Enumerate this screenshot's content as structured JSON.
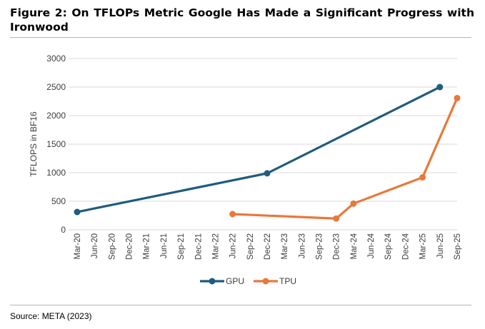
{
  "title": "Figure 2: On TFLOPs Metric Google Has Made a Significant Progress with Ironwood",
  "source": "Source: META (2023)",
  "chart_data": {
    "type": "line",
    "title": "",
    "xlabel": "",
    "ylabel": "TFLOPS in BF16",
    "ylim": [
      0,
      3000
    ],
    "yticks": [
      0,
      500,
      1000,
      1500,
      2000,
      2500,
      3000
    ],
    "categories": [
      "Mar-20",
      "Jun-20",
      "Sep-20",
      "Dec-20",
      "Mar-21",
      "Jun-21",
      "Sep-21",
      "Dec-21",
      "Mar-22",
      "Jun-22",
      "Sep-22",
      "Dec-22",
      "Mar-23",
      "Jun-23",
      "Sep-23",
      "Dec-23",
      "Mar-24",
      "Jun-24",
      "Sep-24",
      "Dec-24",
      "Mar-25",
      "Jun-25",
      "Sep-25"
    ],
    "grid": true,
    "legend_position": "bottom",
    "series": [
      {
        "name": "GPU",
        "color": "#1f5c7e",
        "points": [
          [
            "Mar-20",
            312
          ],
          [
            "Dec-22",
            989
          ],
          [
            "Jun-25",
            2500
          ]
        ]
      },
      {
        "name": "TPU",
        "color": "#e8793a",
        "points": [
          [
            "Jun-22",
            275
          ],
          [
            "Dec-23",
            197
          ],
          [
            "Mar-24",
            459
          ],
          [
            "Mar-25",
            918
          ],
          [
            "Sep-25",
            2307
          ]
        ]
      }
    ]
  }
}
